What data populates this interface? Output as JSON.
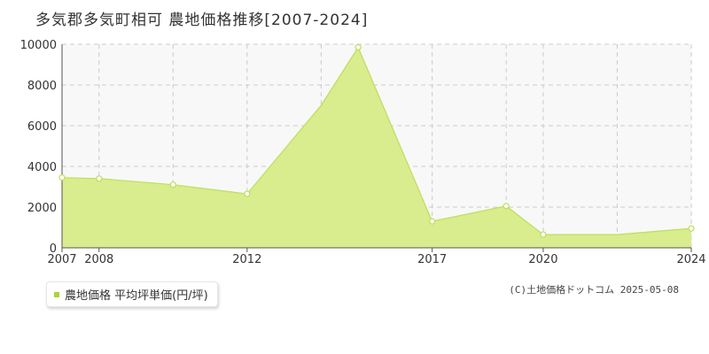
{
  "title": "多気郡多気町相可 農地価格推移[2007-2024]",
  "legend": {
    "label": "農地価格 平均坪単価(円/坪)"
  },
  "credit": "(C)土地価格ドットコム 2025-05-08",
  "colors": {
    "area_fill": "#d9ec8e",
    "line": "#bcdf5a",
    "marker_fill": "#ffffff",
    "grid": "#cccccc",
    "plot_bg": "#f8f8f8",
    "legend_swatch": "#a8d43a"
  },
  "chart_data": {
    "type": "area",
    "title": "多気郡多気町相可 農地価格推移[2007-2024]",
    "xlabel": "",
    "ylabel": "",
    "xlim": [
      2007,
      2024
    ],
    "ylim": [
      0,
      10000
    ],
    "x_ticks": [
      "2007",
      "2008",
      "2012",
      "2017",
      "2020",
      "2024"
    ],
    "x_tick_values": [
      2007,
      2008,
      2012,
      2017,
      2020,
      2024
    ],
    "x_grid_values": [
      2007,
      2008,
      2010,
      2012,
      2014,
      2017,
      2019,
      2020,
      2022,
      2024
    ],
    "y_ticks": [
      "0",
      "2000",
      "4000",
      "6000",
      "8000",
      "10000"
    ],
    "y_tick_values": [
      0,
      2000,
      4000,
      6000,
      8000,
      10000
    ],
    "grid": true,
    "legend_position": "bottom-left",
    "series": [
      {
        "name": "農地価格 平均坪単価(円/坪)",
        "x": [
          2007,
          2008,
          2010,
          2012,
          2014,
          2015,
          2017,
          2019,
          2020,
          2022,
          2024
        ],
        "y": [
          3450,
          3400,
          3100,
          2650,
          7000,
          9850,
          1300,
          2050,
          650,
          650,
          950
        ],
        "markers": [
          true,
          true,
          true,
          true,
          false,
          true,
          true,
          true,
          true,
          false,
          true
        ]
      }
    ]
  }
}
